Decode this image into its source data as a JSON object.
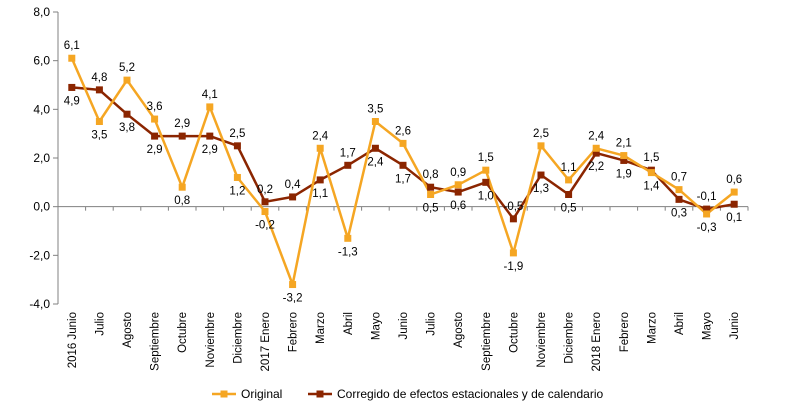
{
  "chart_data": {
    "type": "line",
    "categories": [
      "2016 Junio",
      "Julio",
      "Agosto",
      "Septiembre",
      "Octubre",
      "Noviembre",
      "Diciembre",
      "2017 Enero",
      "Febrero",
      "Marzo",
      "Abril",
      "Mayo",
      "Junio",
      "Julio",
      "Agosto",
      "Septiembre",
      "Octubre",
      "Noviembre",
      "Diciembre",
      "2018 Enero",
      "Febrero",
      "Marzo",
      "Abril",
      "Mayo",
      "Junio"
    ],
    "series": [
      {
        "name": "Original",
        "color": "#f5a623",
        "marker": "square",
        "values": [
          6.1,
          3.5,
          5.2,
          3.6,
          0.8,
          4.1,
          1.2,
          -0.2,
          -3.2,
          2.4,
          -1.3,
          3.5,
          2.6,
          0.5,
          0.9,
          1.5,
          -1.9,
          2.5,
          1.1,
          2.4,
          2.1,
          1.4,
          0.7,
          -0.3,
          0.6
        ],
        "labels": [
          "6,1",
          "3,5",
          "5,2",
          "3,6",
          "0,8",
          "4,1",
          "1,2",
          "-0,2",
          "-3,2",
          "2,4",
          "-1,3",
          "3,5",
          "2,6",
          "0,5",
          "0,9",
          "1,5",
          "-1,9",
          "2,5",
          "1,1",
          "2,4",
          "2,1",
          "1,4",
          "0,7",
          "-0,3",
          "0,6"
        ]
      },
      {
        "name": "Corregido de efectos estacionales y de calendario",
        "color": "#8b2500",
        "marker": "square",
        "values": [
          4.9,
          4.8,
          3.8,
          2.9,
          2.9,
          2.9,
          2.5,
          0.2,
          0.4,
          1.1,
          1.7,
          2.4,
          1.7,
          0.8,
          0.6,
          1.0,
          -0.5,
          1.3,
          0.5,
          2.2,
          1.9,
          1.5,
          0.3,
          -0.1,
          0.1
        ],
        "labels": [
          "4,9",
          "4,8",
          "3,8",
          "2,9",
          "2,9",
          "2,9",
          "2,5",
          "0,2",
          "0,4",
          "1,1",
          "1,7",
          "2,4",
          "1,7",
          "0,8",
          "0,6",
          "1,0",
          "-0,5",
          "1,3",
          "0,5",
          "2,2",
          "1,9",
          "1,5",
          "0,3",
          "-0,1",
          "0,1"
        ]
      }
    ],
    "ylim": [
      -4.0,
      8.0
    ],
    "yticks": [
      -4.0,
      -2.0,
      0.0,
      2.0,
      4.0,
      6.0,
      8.0
    ],
    "ytick_labels": [
      "-4,0",
      "-2,0",
      "0,0",
      "2,0",
      "4,0",
      "6,0",
      "8,0"
    ],
    "grid": false,
    "legend_position": "bottom"
  }
}
